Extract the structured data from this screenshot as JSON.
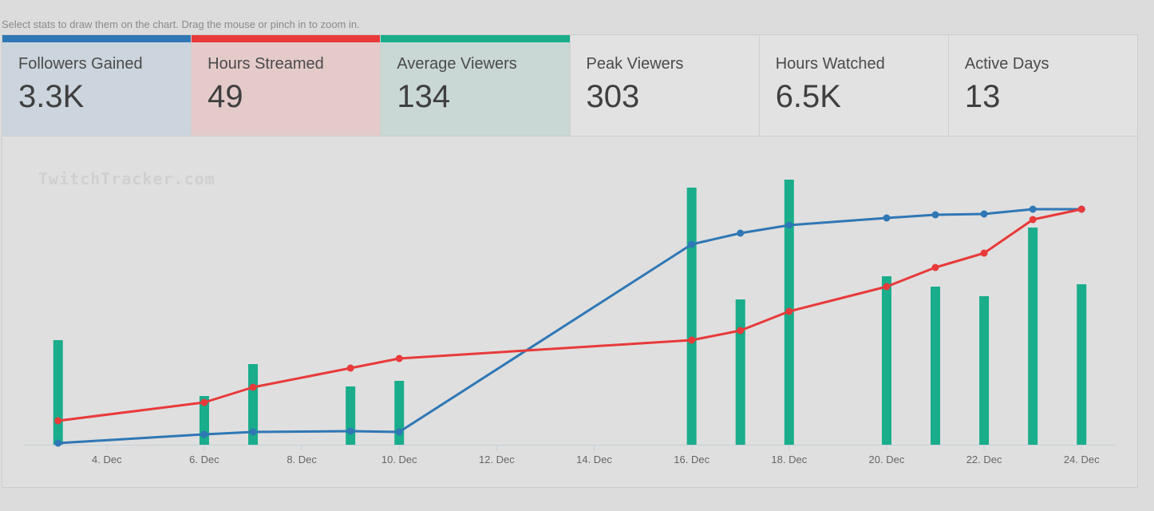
{
  "hint": "Select stats to draw them on the chart. Drag the mouse or pinch in to zoom in.",
  "watermark": "TwitchTracker.com",
  "stats": [
    {
      "label": "Followers Gained",
      "value": "3.3K",
      "color": "#2f77b5",
      "active": true,
      "tint": "#ccd5dd"
    },
    {
      "label": "Hours Streamed",
      "value": "49",
      "color": "#e83a3a",
      "active": true,
      "tint": "#e4cbca"
    },
    {
      "label": "Average Viewers",
      "value": "134",
      "color": "#19ad8c",
      "active": true,
      "tint": "#c9d8d5"
    },
    {
      "label": "Peak Viewers",
      "value": "303",
      "active": false
    },
    {
      "label": "Hours Watched",
      "value": "6.5K",
      "active": false
    },
    {
      "label": "Active Days",
      "value": "13",
      "active": false
    }
  ],
  "chart_data": {
    "type": "bar+line",
    "x_tick_labels": [
      "4. Dec",
      "6. Dec",
      "8. Dec",
      "10. Dec",
      "12. Dec",
      "14. Dec",
      "16. Dec",
      "18. Dec",
      "20. Dec",
      "22. Dec",
      "24. Dec"
    ],
    "x_range_days": [
      2.3,
      24.7
    ],
    "bars": {
      "name": "Average Viewers",
      "color": "#19ad8c",
      "points": [
        [
          3,
          131
        ],
        [
          6,
          61
        ],
        [
          7,
          101
        ],
        [
          9,
          73
        ],
        [
          10,
          80
        ],
        [
          16,
          322
        ],
        [
          17,
          182
        ],
        [
          18,
          332
        ],
        [
          20,
          211
        ],
        [
          21,
          198
        ],
        [
          22,
          186
        ],
        [
          23,
          272
        ],
        [
          24,
          201
        ]
      ],
      "ylim": [
        0,
        340
      ]
    },
    "lines": [
      {
        "name": "Followers Gained",
        "color": "#2f77b5",
        "points": [
          [
            3,
            2
          ],
          [
            6,
            13
          ],
          [
            7,
            16
          ],
          [
            9,
            17
          ],
          [
            10,
            16
          ],
          [
            16,
            251
          ],
          [
            17,
            265
          ],
          [
            18,
            275
          ],
          [
            20,
            284
          ],
          [
            21,
            288
          ],
          [
            22,
            289
          ],
          [
            23,
            295
          ],
          [
            24,
            295
          ]
        ],
        "ylim": [
          0,
          340
        ]
      },
      {
        "name": "Hours Streamed",
        "color": "#e83a3a",
        "points": [
          [
            3,
            30
          ],
          [
            6,
            53
          ],
          [
            7,
            72
          ],
          [
            9,
            96
          ],
          [
            10,
            108
          ],
          [
            16,
            131
          ],
          [
            17,
            143
          ],
          [
            18,
            167
          ],
          [
            20,
            198
          ],
          [
            21,
            222
          ],
          [
            22,
            240
          ],
          [
            23,
            282
          ],
          [
            24,
            295
          ]
        ],
        "ylim": [
          0,
          340
        ]
      }
    ]
  }
}
